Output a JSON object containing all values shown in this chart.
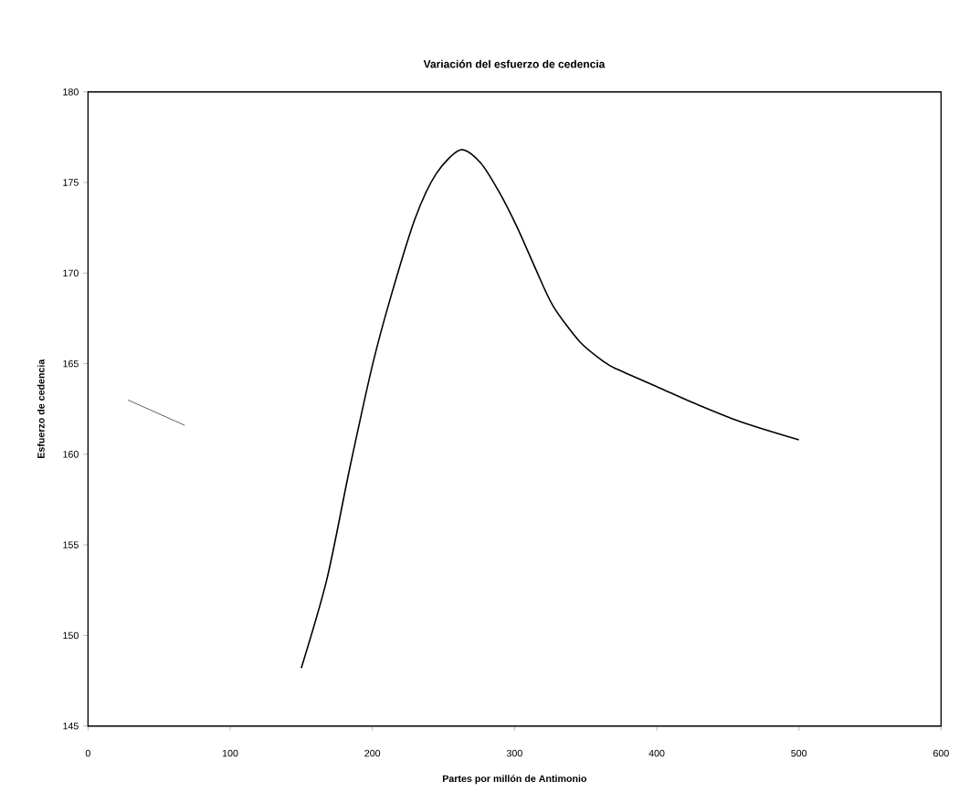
{
  "chart_data": {
    "type": "line",
    "title": "Variación del esfuerzo de cedencia",
    "xlabel": "Partes por millón de Antimonio",
    "ylabel": "Esfuerzo de cedencia",
    "xlim": [
      0,
      600
    ],
    "xticks": [
      0,
      100,
      200,
      300,
      400,
      500,
      600
    ],
    "ylim": [
      145,
      180
    ],
    "yticks": [
      145,
      150,
      155,
      160,
      165,
      170,
      175,
      180
    ],
    "grid": false,
    "marker": "none",
    "line_style": "solid",
    "series": [
      {
        "color": "#000000",
        "x": [
          150,
          168,
          184,
          200,
          213,
          230,
          245,
          262,
          276,
          289,
          302,
          315,
          327,
          346,
          363,
          372,
          401,
          427,
          459,
          500
        ],
        "values": [
          148.2,
          153.1,
          159.2,
          164.9,
          168.7,
          173.0,
          175.5,
          176.8,
          176.1,
          174.5,
          172.5,
          170.2,
          168.2,
          166.2,
          165.1,
          164.7,
          163.7,
          162.8,
          161.8,
          160.8
        ]
      },
      {
        "color": "#333333",
        "x": [
          28,
          68
        ],
        "values": [
          163.0,
          161.6
        ]
      }
    ]
  }
}
